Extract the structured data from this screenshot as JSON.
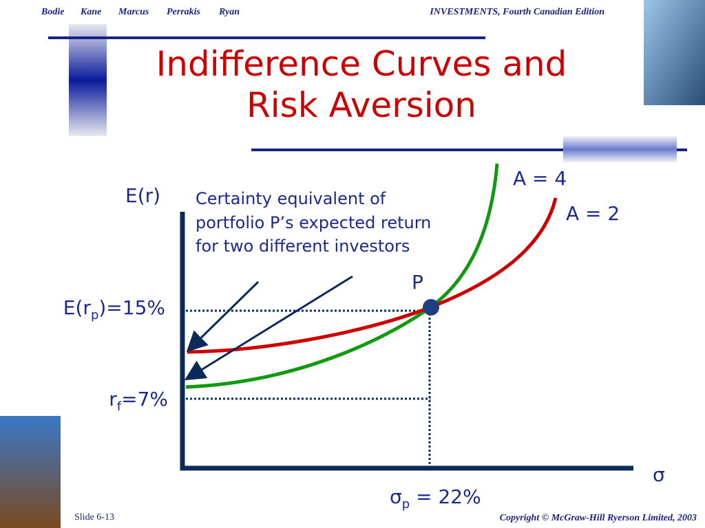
{
  "header": {
    "authors": [
      "Bodie",
      "Kane",
      "Marcus",
      "Perrakis",
      "Ryan"
    ],
    "edition": "INVESTMENTS, Fourth Canadian Edition"
  },
  "title": [
    "Indifference Curves and",
    "Risk Aversion"
  ],
  "diagram": {
    "y_axis_label": "E(r)",
    "x_axis_label": "σ",
    "annotation": [
      "Certainty equivalent of",
      "portfolio P’s expected return",
      "for two different investors"
    ],
    "curve_labels": [
      "A = 4",
      "A = 2"
    ],
    "point_label": "P",
    "expected_return_label": {
      "main": "E(r",
      "sub": "p",
      "rest": ")=15%"
    },
    "risk_free_label": {
      "main": "r",
      "sub": "f",
      "rest": "=7%"
    },
    "sigma_label": {
      "main": "σ",
      "sub": "p",
      "rest": " = 22%"
    }
  },
  "footer": {
    "slide": "Slide 6-13",
    "copyright": "Copyright © McGraw-Hill Ryerson Limited, 2003"
  }
}
